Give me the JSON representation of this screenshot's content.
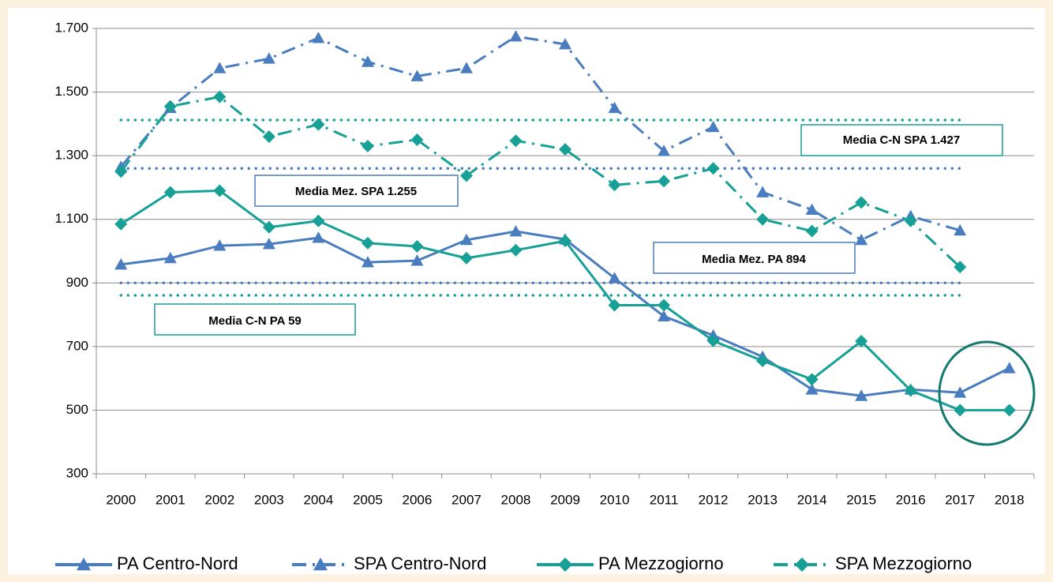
{
  "chart_data": {
    "type": "line",
    "categories": [
      "2000",
      "2001",
      "2002",
      "2003",
      "2004",
      "2005",
      "2006",
      "2007",
      "2008",
      "2009",
      "2010",
      "2011",
      "2012",
      "2013",
      "2014",
      "2015",
      "2016",
      "2017",
      "2018"
    ],
    "series": [
      {
        "name": "PA Centro-Nord",
        "color": "#4a7dbf",
        "line_style": "solid",
        "marker": "triangle",
        "values": [
          958,
          978,
          1017,
          1022,
          1042,
          965,
          970,
          1035,
          1062,
          1037,
          915,
          795,
          735,
          668,
          565,
          545,
          565,
          555,
          632
        ]
      },
      {
        "name": "SPA Centro-Nord",
        "color": "#4a7dbf",
        "line_style": "dashdot",
        "marker": "triangle",
        "values": [
          1265,
          1450,
          1575,
          1605,
          1670,
          1595,
          1550,
          1575,
          1675,
          1650,
          1450,
          1315,
          1390,
          1185,
          1130,
          1035,
          1110,
          1065,
          null
        ]
      },
      {
        "name": "PA Mezzogiorno",
        "color": "#17a096",
        "line_style": "solid",
        "marker": "diamond",
        "values": [
          1085,
          1185,
          1190,
          1075,
          1095,
          1025,
          1015,
          978,
          1003,
          1032,
          830,
          830,
          718,
          655,
          597,
          717,
          562,
          500,
          500
        ]
      },
      {
        "name": "SPA Mezzogiorno",
        "color": "#17a096",
        "line_style": "dashdot",
        "marker": "diamond",
        "values": [
          1250,
          1455,
          1485,
          1360,
          1398,
          1330,
          1350,
          1237,
          1347,
          1320,
          1208,
          1220,
          1260,
          1100,
          1063,
          1153,
          1095,
          950,
          null
        ]
      }
    ],
    "reference_lines": [
      {
        "value": 1412,
        "color": "#17a096"
      },
      {
        "value": 1260,
        "color": "#4a7dbf"
      },
      {
        "value": 900,
        "color": "#4a7dbf"
      },
      {
        "value": 861,
        "color": "#17a096"
      }
    ],
    "annotations": [
      "Media C-N SPA 1.427",
      "Media Mez. SPA 1.255",
      "Media Mez. PA 894",
      "Media C-N PA 59"
    ],
    "ylim": [
      300,
      1700
    ],
    "yticks": [
      {
        "value": 300,
        "label": "300"
      },
      {
        "value": 500,
        "label": "500"
      },
      {
        "value": 700,
        "label": "700"
      },
      {
        "value": 900,
        "label": "900"
      },
      {
        "value": 1100,
        "label": "1.100"
      },
      {
        "value": 1300,
        "label": "1.300"
      },
      {
        "value": 1500,
        "label": "1.500"
      },
      {
        "value": 1700,
        "label": "1.700"
      }
    ],
    "grid": true,
    "legend": "bottom"
  }
}
